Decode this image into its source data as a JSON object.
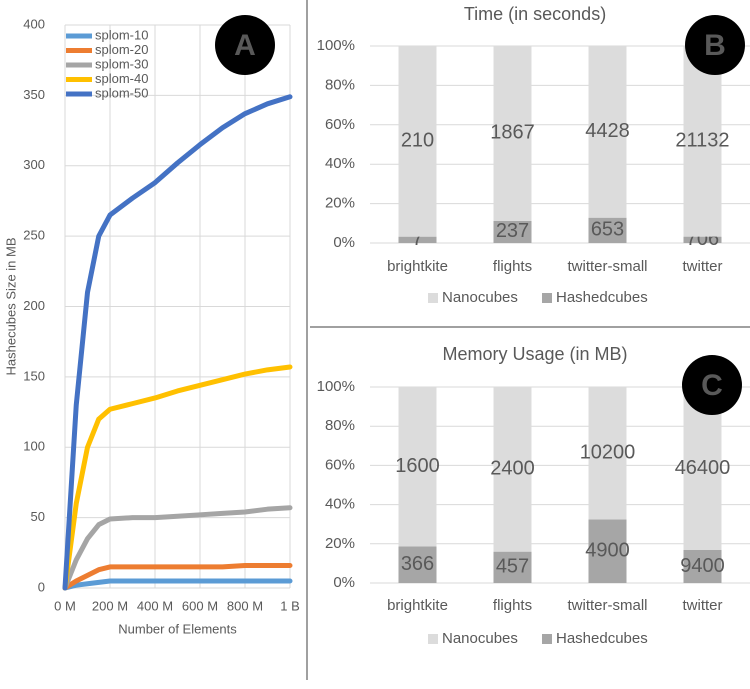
{
  "chart_data": [
    {
      "type": "line",
      "annotation": "A",
      "x_label": "Number of Elements",
      "y_label": "Hashecubes Size in MB",
      "x": [
        0,
        50000000,
        100000000,
        150000000,
        200000000,
        300000000,
        400000000,
        500000000,
        600000000,
        700000000,
        800000000,
        900000000,
        1000000000
      ],
      "xlim": [
        0,
        1000000000
      ],
      "xticks": [
        {
          "value": 0,
          "label": "0 M"
        },
        {
          "value": 200000000,
          "label": "200 M"
        },
        {
          "value": 400000000,
          "label": "400 M"
        },
        {
          "value": 600000000,
          "label": "600 M"
        },
        {
          "value": 800000000,
          "label": "800 M"
        },
        {
          "value": 1000000000,
          "label": "1 B"
        }
      ],
      "ylim": [
        0,
        400
      ],
      "yticks": [
        0,
        50,
        100,
        150,
        200,
        250,
        300,
        350,
        400
      ],
      "grid": true,
      "series": [
        {
          "name": "splom-10",
          "color": "#5b9bd5",
          "values": [
            0,
            2,
            3,
            4,
            5,
            5,
            5,
            5,
            5,
            5,
            5,
            5,
            5
          ]
        },
        {
          "name": "splom-20",
          "color": "#ed7d31",
          "values": [
            0,
            5,
            9,
            13,
            15,
            15,
            15,
            15,
            15,
            15,
            16,
            16,
            16
          ]
        },
        {
          "name": "splom-30",
          "color": "#a5a5a5",
          "values": [
            0,
            20,
            35,
            45,
            49,
            50,
            50,
            51,
            52,
            53,
            54,
            56,
            57
          ]
        },
        {
          "name": "splom-40",
          "color": "#ffc000",
          "values": [
            0,
            60,
            100,
            120,
            127,
            131,
            135,
            140,
            144,
            148,
            152,
            155,
            157
          ]
        },
        {
          "name": "splom-50",
          "color": "#4472c4",
          "values": [
            0,
            130,
            210,
            250,
            265,
            277,
            288,
            302,
            315,
            327,
            337,
            344,
            349
          ]
        }
      ]
    },
    {
      "type": "bar",
      "stacking": "percent",
      "title": "Time (in seconds)",
      "annotation": "B",
      "categories": [
        "brightkite",
        "flights",
        "twitter-small",
        "twitter"
      ],
      "ylim": [
        0,
        100
      ],
      "yticks": [
        {
          "value": 0,
          "label": "0%"
        },
        {
          "value": 20,
          "label": "20%"
        },
        {
          "value": 40,
          "label": "40%"
        },
        {
          "value": 60,
          "label": "60%"
        },
        {
          "value": 80,
          "label": "80%"
        },
        {
          "value": 100,
          "label": "100%"
        }
      ],
      "grid": true,
      "series": [
        {
          "name": "Nanocubes",
          "color": "#dcdcdc",
          "values": [
            210,
            1867,
            4428,
            21132
          ]
        },
        {
          "name": "Hashedcubes",
          "color": "#a6a6a6",
          "values": [
            7,
            237,
            653,
            706
          ]
        }
      ]
    },
    {
      "type": "bar",
      "stacking": "percent",
      "title": "Memory Usage (in MB)",
      "annotation": "C",
      "categories": [
        "brightkite",
        "flights",
        "twitter-small",
        "twitter"
      ],
      "ylim": [
        0,
        100
      ],
      "yticks": [
        {
          "value": 0,
          "label": "0%"
        },
        {
          "value": 20,
          "label": "20%"
        },
        {
          "value": 40,
          "label": "40%"
        },
        {
          "value": 60,
          "label": "60%"
        },
        {
          "value": 80,
          "label": "80%"
        },
        {
          "value": 100,
          "label": "100%"
        }
      ],
      "grid": true,
      "series": [
        {
          "name": "Nanocubes",
          "color": "#dcdcdc",
          "values": [
            1600,
            2400,
            10200,
            46400
          ]
        },
        {
          "name": "Hashedcubes",
          "color": "#a6a6a6",
          "values": [
            366,
            457,
            4900,
            9400
          ]
        }
      ]
    }
  ]
}
